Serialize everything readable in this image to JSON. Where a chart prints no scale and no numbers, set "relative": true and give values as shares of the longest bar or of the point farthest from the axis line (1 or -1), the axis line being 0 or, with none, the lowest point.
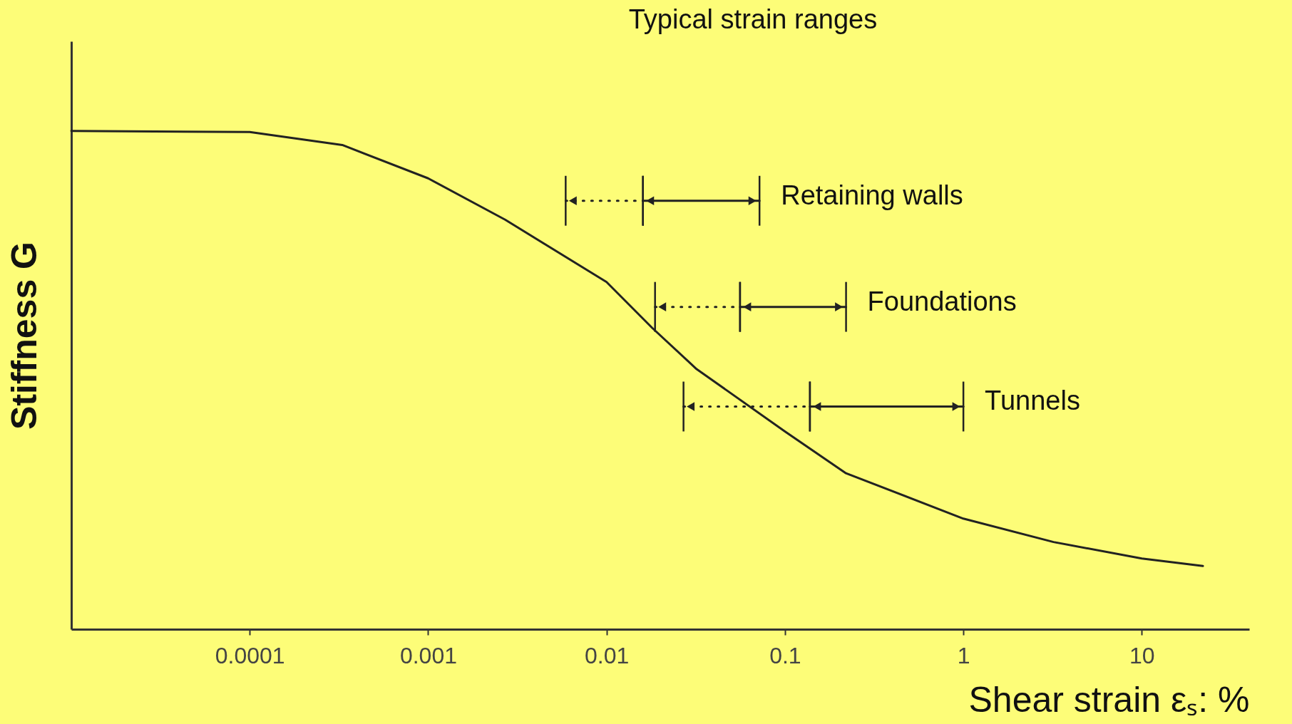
{
  "chart_data": {
    "type": "line",
    "title": "Typical strain ranges",
    "xlabel": "Shear strain  εₛ: %",
    "ylabel": "Stiffness G",
    "relative": true,
    "log": "x",
    "grid": false,
    "marker": "none",
    "line_style": "solid",
    "xlim": [
      1e-05,
      40
    ],
    "xticks": [
      0.0001,
      0.001,
      0.01,
      0.1,
      1,
      10
    ],
    "x": [
      1e-05,
      0.0001,
      0.00033,
      0.001,
      0.0027,
      0.01,
      0.018,
      0.032,
      0.1,
      0.22,
      1,
      3.2,
      10,
      22
    ],
    "series": [
      {
        "color": "#222222",
        "values": [
          1,
          0.998,
          0.972,
          0.905,
          0.822,
          0.697,
          0.605,
          0.522,
          0.397,
          0.313,
          0.222,
          0.175,
          0.142,
          0.127
        ]
      },
      {
        "color": "#222222",
        "line_style": "dotted",
        "x": [
          0.0059,
          0.016
        ],
        "values": [
          0.86,
          0.86
        ]
      },
      {
        "color": "#222222",
        "line_style": "solid",
        "x": [
          0.016,
          0.072
        ],
        "values": [
          0.86,
          0.86
        ]
      },
      {
        "color": "#222222",
        "line_style": "dotted",
        "x": [
          0.0187,
          0.056
        ],
        "values": [
          0.647,
          0.647
        ]
      },
      {
        "color": "#222222",
        "line_style": "solid",
        "x": [
          0.056,
          0.22
        ],
        "values": [
          0.647,
          0.647
        ]
      },
      {
        "color": "#222222",
        "line_style": "dotted",
        "x": [
          0.027,
          0.138
        ],
        "values": [
          0.447,
          0.447
        ]
      },
      {
        "color": "#222222",
        "line_style": "solid",
        "x": [
          0.138,
          1
        ],
        "values": [
          0.447,
          0.447
        ]
      }
    ],
    "annotations": [
      {
        "text": "Retaining walls",
        "x": 0.072,
        "y": 0.86
      },
      {
        "text": "Foundations",
        "x": 0.22,
        "y": 0.647
      },
      {
        "text": "Tunnels",
        "x": 1,
        "y": 0.447
      }
    ]
  }
}
